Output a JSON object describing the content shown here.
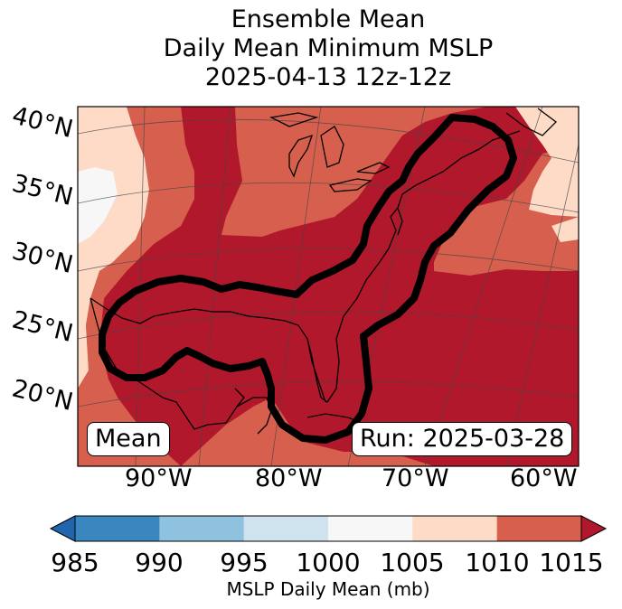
{
  "title": {
    "line1": "Ensemble Mean",
    "line2": "Daily Mean Minimum MSLP",
    "line3": "2025-04-13 12z-12z"
  },
  "map": {
    "lat_labels": [
      "40°N",
      "35°N",
      "30°N",
      "25°N",
      "20°N"
    ],
    "lon_labels": [
      "90°W",
      "80°W",
      "70°W",
      "60°W"
    ],
    "mean_label": "Mean",
    "run_label": "Run: 2025-03-28",
    "contour_color": "#000000",
    "colors": {
      "985-990": "#3a87c0",
      "990-995": "#8fc2de",
      "995-1000": "#cfe3ef",
      "1000-1005": "#f7f7f7",
      "1005-1010": "#fddbc7",
      "1010-1015": "#d6604d",
      "1015+": "#b2182b",
      "below": "#2166ac"
    }
  },
  "colorbar": {
    "ticks": [
      "985",
      "990",
      "995",
      "1000",
      "1005",
      "1010",
      "1015"
    ],
    "label": "MSLP Daily Mean (mb)",
    "bin_colors": [
      "#3a87c0",
      "#8fc2de",
      "#cfe3ef",
      "#f7f7f7",
      "#fddbc7",
      "#d6604d"
    ],
    "under_color": "#2166ac",
    "over_color": "#b2182b"
  }
}
